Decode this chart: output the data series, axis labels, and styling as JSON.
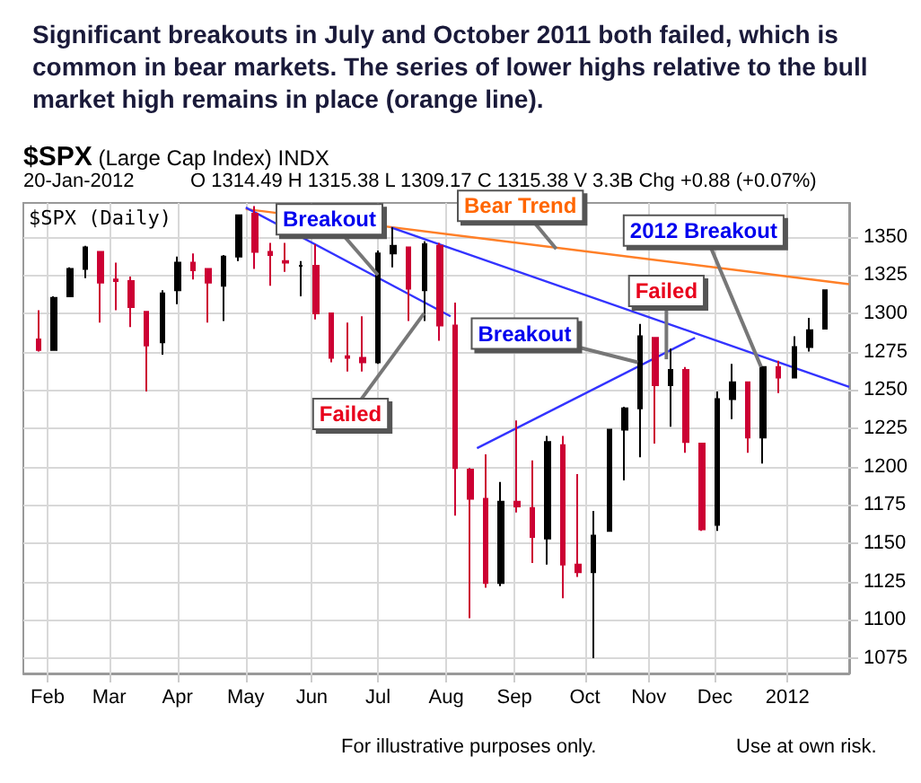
{
  "chart_data": {
    "type": "candlestick",
    "title": "Significant breakouts in July and October 2011 both failed, which is common in bear markets.  The series of lower highs relative to the bull market high remains in place (orange line).",
    "subtitle": "$SPX (Large Cap Index) INDX",
    "annotations": [
      "20-Jan-2012",
      "O 1314.49  H 1315.38  L 1309.17  C 1315.38  V 3.3B  Chg +0.88 (+0.07%)",
      "$SPX (Daily)",
      "For illustrative purposes only.",
      "Use at own risk.",
      {
        "text": "Breakout",
        "x": "2011-07-01",
        "y": 1325
      },
      {
        "text": "Failed",
        "x": "2011-07-22",
        "y": 1300
      },
      {
        "text": "Bear Trend",
        "x": "2011-09-20",
        "y": 1342
      },
      {
        "text": "Breakout",
        "x": "2011-10-27",
        "y": 1268
      },
      {
        "text": "Failed",
        "x": "2011-11-09",
        "y": 1270
      },
      {
        "text": "2012 Breakout",
        "x": "2011-12-22",
        "y": 1265
      }
    ],
    "x": [
      "2011-01-28",
      "2011-02-04",
      "2011-02-11",
      "2011-02-18",
      "2011-02-25",
      "2011-03-04",
      "2011-03-11",
      "2011-03-18",
      "2011-03-25",
      "2011-04-01",
      "2011-04-08",
      "2011-04-15",
      "2011-04-22",
      "2011-04-29",
      "2011-05-06",
      "2011-05-13",
      "2011-05-20",
      "2011-05-27",
      "2011-06-03",
      "2011-06-10",
      "2011-06-17",
      "2011-06-24",
      "2011-07-01",
      "2011-07-08",
      "2011-07-15",
      "2011-07-22",
      "2011-07-29",
      "2011-08-05",
      "2011-08-12",
      "2011-08-19",
      "2011-08-26",
      "2011-09-02",
      "2011-09-09",
      "2011-09-16",
      "2011-09-23",
      "2011-09-30",
      "2011-10-07",
      "2011-10-14",
      "2011-10-21",
      "2011-10-28",
      "2011-11-04",
      "2011-11-11",
      "2011-11-18",
      "2011-11-25",
      "2011-12-02",
      "2011-12-09",
      "2011-12-16",
      "2011-12-23",
      "2011-12-30",
      "2012-01-06",
      "2012-01-13",
      "2012-01-20"
    ],
    "ohlc": [
      [
        1283,
        1302,
        1275,
        1276
      ],
      [
        1276,
        1311,
        1276,
        1310
      ],
      [
        1311,
        1330,
        1311,
        1329
      ],
      [
        1329,
        1344,
        1323,
        1343
      ],
      [
        1340,
        1340,
        1294,
        1320
      ],
      [
        1322,
        1333,
        1302,
        1321
      ],
      [
        1321,
        1324,
        1291,
        1304
      ],
      [
        1301,
        1301,
        1249,
        1279
      ],
      [
        1281,
        1315,
        1273,
        1313
      ],
      [
        1315,
        1337,
        1306,
        1333
      ],
      [
        1333,
        1339,
        1322,
        1328
      ],
      [
        1329,
        1329,
        1294,
        1320
      ],
      [
        1318,
        1338,
        1295,
        1337
      ],
      [
        1337,
        1364,
        1334,
        1364
      ],
      [
        1365,
        1370,
        1329,
        1340
      ],
      [
        1340,
        1346,
        1318,
        1338
      ],
      [
        1334,
        1346,
        1327,
        1333
      ],
      [
        1331,
        1334,
        1311,
        1331
      ],
      [
        1331,
        1345,
        1296,
        1300
      ],
      [
        1300,
        1300,
        1268,
        1271
      ],
      [
        1272,
        1294,
        1262,
        1271
      ],
      [
        1271,
        1298,
        1262,
        1268
      ],
      [
        1268,
        1341,
        1267,
        1339
      ],
      [
        1339,
        1356,
        1330,
        1344
      ],
      [
        1343,
        1343,
        1295,
        1316
      ],
      [
        1315,
        1347,
        1295,
        1345
      ],
      [
        1344,
        1346,
        1282,
        1292
      ],
      [
        1292,
        1307,
        1168,
        1199
      ],
      [
        1198,
        1199,
        1101,
        1179
      ],
      [
        1179,
        1208,
        1121,
        1124
      ],
      [
        1124,
        1190,
        1122,
        1177
      ],
      [
        1177,
        1230,
        1170,
        1174
      ],
      [
        1173,
        1204,
        1137,
        1154
      ],
      [
        1153,
        1220,
        1136,
        1216
      ],
      [
        1214,
        1220,
        1114,
        1136
      ],
      [
        1136,
        1195,
        1128,
        1131
      ],
      [
        1131,
        1171,
        1075,
        1155
      ],
      [
        1158,
        1224,
        1158,
        1224
      ],
      [
        1224,
        1239,
        1191,
        1238
      ],
      [
        1238,
        1293,
        1206,
        1285
      ],
      [
        1284,
        1284,
        1215,
        1253
      ],
      [
        1253,
        1277,
        1226,
        1263
      ],
      [
        1263,
        1265,
        1209,
        1216
      ],
      [
        1215,
        1215,
        1158,
        1159
      ],
      [
        1162,
        1249,
        1158,
        1244
      ],
      [
        1244,
        1267,
        1231,
        1255
      ],
      [
        1255,
        1255,
        1209,
        1219
      ],
      [
        1219,
        1265,
        1202,
        1265
      ],
      [
        1265,
        1269,
        1248,
        1258
      ],
      [
        1258,
        1285,
        1258,
        1278
      ],
      [
        1278,
        1297,
        1275,
        1289
      ],
      [
        1290,
        1315,
        1290,
        1315
      ]
    ],
    "colors": [
      "#cc0033",
      "#000000",
      "#000000",
      "#000000",
      "#cc0033",
      "#cc0033",
      "#cc0033",
      "#cc0033",
      "#000000",
      "#000000",
      "#cc0033",
      "#cc0033",
      "#000000",
      "#000000",
      "#cc0033",
      "#cc0033",
      "#cc0033",
      "#000000",
      "#cc0033",
      "#cc0033",
      "#cc0033",
      "#cc0033",
      "#000000",
      "#000000",
      "#cc0033",
      "#000000",
      "#cc0033",
      "#cc0033",
      "#cc0033",
      "#cc0033",
      "#000000",
      "#cc0033",
      "#cc0033",
      "#000000",
      "#cc0033",
      "#cc0033",
      "#000000",
      "#000000",
      "#000000",
      "#000000",
      "#cc0033",
      "#000000",
      "#cc0033",
      "#cc0033",
      "#000000",
      "#000000",
      "#cc0033",
      "#000000",
      "#cc0033",
      "#000000",
      "#000000",
      "#000000"
    ],
    "series": [
      {
        "type": "line",
        "color": "#ff7f27",
        "x": [
          "2011-05-02",
          "2012-01-31"
        ],
        "values": [
          1368,
          1319
        ]
      },
      {
        "type": "line",
        "color": "#3333ff",
        "x": [
          "2011-05-02",
          "2011-08-03"
        ],
        "values": [
          1369,
          1298
        ]
      },
      {
        "type": "line",
        "color": "#3333ff",
        "x": [
          "2011-07-07",
          "2012-01-31"
        ],
        "values": [
          1356,
          1252
        ]
      },
      {
        "type": "line",
        "color": "#3333ff",
        "x": [
          "2011-08-15",
          "2011-11-22"
        ],
        "values": [
          1212,
          1284
        ]
      }
    ],
    "xlim": [
      "2011-01-21",
      "2012-01-31"
    ],
    "xticks": [
      {
        "value": "2011-02-01",
        "label": "Feb"
      },
      {
        "value": "2011-03-01",
        "label": "Mar"
      },
      {
        "value": "2011-04-01",
        "label": "Apr"
      },
      {
        "value": "2011-05-02",
        "label": "May"
      },
      {
        "value": "2011-06-01",
        "label": "Jun"
      },
      {
        "value": "2011-07-01",
        "label": "Jul"
      },
      {
        "value": "2011-08-01",
        "label": "Aug"
      },
      {
        "value": "2011-09-01",
        "label": "Sep"
      },
      {
        "value": "2011-10-03",
        "label": "Oct"
      },
      {
        "value": "2011-11-01",
        "label": "Nov"
      },
      {
        "value": "2011-12-01",
        "label": "Dec"
      },
      {
        "value": "2012-01-03",
        "label": "2012"
      }
    ],
    "ylim": [
      1065,
      1372
    ],
    "yticks": [
      1075,
      1100,
      1125,
      1150,
      1175,
      1200,
      1225,
      1250,
      1275,
      1300,
      1325,
      1350
    ],
    "grid": true,
    "line_style": "solid",
    "marker": "none"
  }
}
